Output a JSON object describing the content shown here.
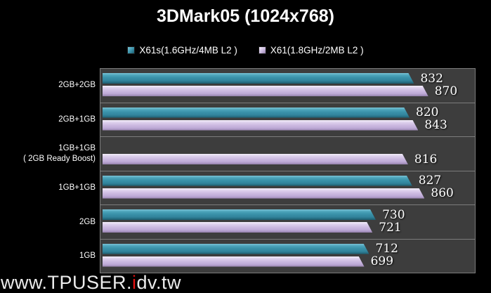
{
  "title": "3DMark05 (1024x768)",
  "watermark": {
    "prefix": "www.TPUSER.",
    "accent": "i",
    "suffix": "dv.tw",
    "accent_color": "#e61010"
  },
  "colors": {
    "background": "#000000",
    "plot_background": "#3d3d3d",
    "grid_line": "#7c7c7c",
    "series_teal": {
      "light": "#7ac3d6",
      "mid": "#3a91a9",
      "dark": "#1c5b6d"
    },
    "series_purple": {
      "light": "#f4effa",
      "mid": "#cbb9e0",
      "dark": "#9480ab"
    }
  },
  "chart_data": {
    "type": "bar",
    "orientation": "horizontal",
    "title": "3DMark05 (1024x768)",
    "xlabel": "",
    "ylabel": "",
    "xlim": [
      0,
      1000
    ],
    "grid": false,
    "legend_position": "top-center",
    "categories": [
      [
        "2GB+2GB"
      ],
      [
        "2GB+1GB"
      ],
      [
        "1GB+1GB",
        "( 2GB Ready Boost)"
      ],
      [
        "1GB+1GB"
      ],
      [
        "2GB"
      ],
      [
        "1GB"
      ]
    ],
    "series": [
      {
        "name": "X61s(1.6GHz/4MB L2 )",
        "color": "#3a91a9",
        "values": [
          832,
          820,
          null,
          827,
          730,
          712
        ]
      },
      {
        "name": "X61(1.8GHz/2MB L2 )",
        "color": "#cbb9e0",
        "values": [
          870,
          843,
          816,
          860,
          721,
          699
        ]
      }
    ]
  }
}
